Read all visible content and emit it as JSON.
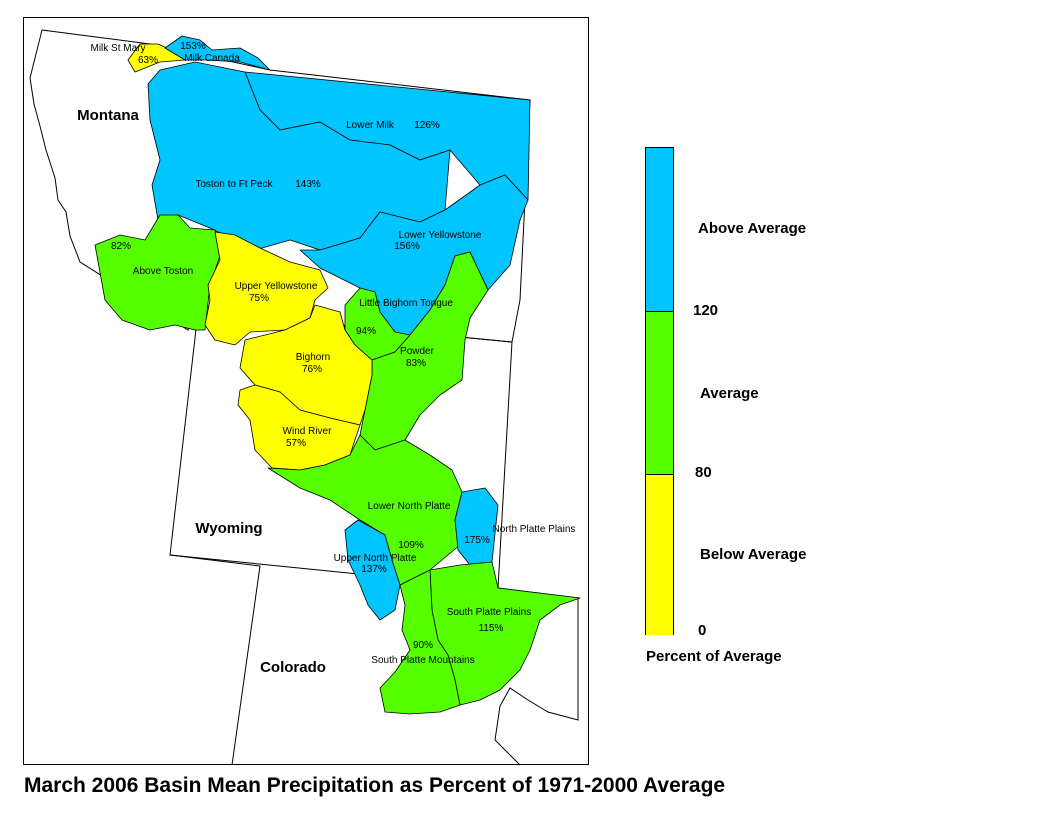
{
  "states": {
    "montana": "Montana",
    "wyoming": "Wyoming",
    "colorado": "Colorado"
  },
  "colors": {
    "above": "#00c5ff",
    "average": "#55ff00",
    "below": "#ffff00"
  },
  "basins": {
    "milk_st_mary": {
      "name": "Milk St Mary",
      "pct": "63%",
      "category": "below"
    },
    "milk_canada": {
      "name": "Milk Canada",
      "pct": "153%",
      "category": "above"
    },
    "lower_milk": {
      "name": "Lower Milk",
      "pct": "126%",
      "category": "above"
    },
    "toston_ft_peck": {
      "name": "Toston to Ft Peck",
      "pct": "143%",
      "category": "above"
    },
    "lower_yellowstone": {
      "name": "Lower Yellowstone",
      "pct": "156%",
      "category": "above"
    },
    "above_toston": {
      "name": "Above Toston",
      "pct": "82%",
      "category": "average"
    },
    "upper_yellowstone": {
      "name": "Upper Yellowstone",
      "pct": "75%",
      "category": "below"
    },
    "little_bighorn_tongue": {
      "name": "Little Bighorn Tongue",
      "pct": "94%",
      "category": "average"
    },
    "powder": {
      "name": "Powder",
      "pct": "83%",
      "category": "average"
    },
    "bighorn": {
      "name": "Bighorn",
      "pct": "76%",
      "category": "below"
    },
    "wind_river": {
      "name": "Wind River",
      "pct": "57%",
      "category": "below"
    },
    "lower_north_platte": {
      "name": "Lower North Platte",
      "pct": "109%",
      "category": "average"
    },
    "north_platte_plains": {
      "name": "North Platte Plains",
      "pct": "175%",
      "category": "above"
    },
    "upper_north_platte": {
      "name": "Upper North Platte",
      "pct": "137%",
      "category": "above"
    },
    "south_platte_plains": {
      "name": "South Platte Plains",
      "pct": "115%",
      "category": "average"
    },
    "south_platte_mountains": {
      "name": "South Platte Mountains",
      "pct": "90%",
      "category": "average"
    }
  },
  "legend": {
    "above": "Above Average",
    "average": "Average",
    "below": "Below Average",
    "tick_120": "120",
    "tick_80": "80",
    "tick_0": "0",
    "title": "Percent of Average"
  },
  "caption": "March 2006 Basin Mean Precipitation as Percent of 1971-2000 Average"
}
